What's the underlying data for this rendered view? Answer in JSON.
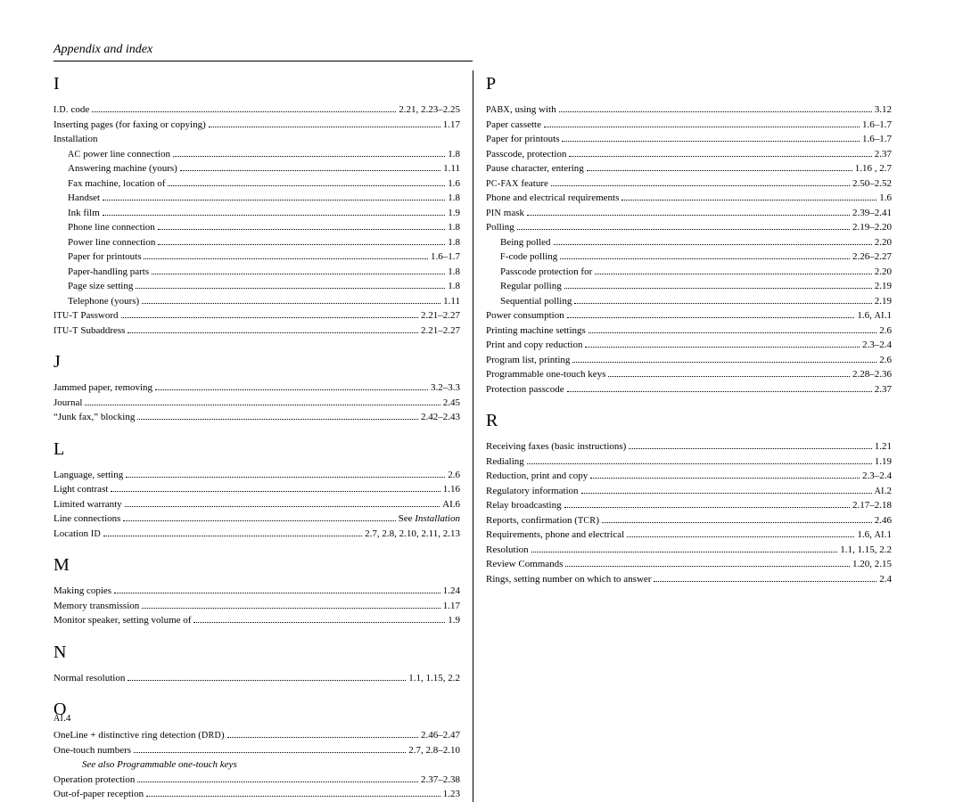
{
  "header": "Appendix and index",
  "pageNumber": "AI.4",
  "leftColumn": [
    {
      "type": "letter",
      "text": "I"
    },
    {
      "type": "entry",
      "level": 0,
      "label_html": "<span class='sc'>I.D.</span> code",
      "page": "2.21, 2.23–2.25"
    },
    {
      "type": "entry",
      "level": 0,
      "label": "Inserting pages (for faxing or copying)",
      "page": "1.17"
    },
    {
      "type": "entry",
      "level": 0,
      "label": "Installation",
      "page": ""
    },
    {
      "type": "entry",
      "level": 1,
      "label_html": "<span class='sc'>AC</span> power line connection",
      "page": "1.8"
    },
    {
      "type": "entry",
      "level": 1,
      "label": "Answering machine (yours)",
      "page": "1.11"
    },
    {
      "type": "entry",
      "level": 1,
      "label": "Fax machine, location of",
      "page": "1.6"
    },
    {
      "type": "entry",
      "level": 1,
      "label": "Handset",
      "page": "1.8"
    },
    {
      "type": "entry",
      "level": 1,
      "label": "Ink film",
      "page": "1.9"
    },
    {
      "type": "entry",
      "level": 1,
      "label": "Phone line connection",
      "page": "1.8"
    },
    {
      "type": "entry",
      "level": 1,
      "label": "Power line connection",
      "page": "1.8"
    },
    {
      "type": "entry",
      "level": 1,
      "label": "Paper for printouts",
      "page": "1.6–1.7"
    },
    {
      "type": "entry",
      "level": 1,
      "label": "Paper-handling parts",
      "page": "1.8"
    },
    {
      "type": "entry",
      "level": 1,
      "label": "Page size setting",
      "page": "1.8"
    },
    {
      "type": "entry",
      "level": 1,
      "label": "Telephone (yours)",
      "page": "1.11"
    },
    {
      "type": "entry",
      "level": 0,
      "label_html": "<span class='sc'>ITU-T</span> Password",
      "page": "2.21–2.27"
    },
    {
      "type": "entry",
      "level": 0,
      "label_html": "<span class='sc'>ITU-T</span> Subaddress",
      "page": "2.21–2.27"
    },
    {
      "type": "letter",
      "text": "J"
    },
    {
      "type": "entry",
      "level": 0,
      "label": "Jammed paper, removing",
      "page": "3.2–3.3"
    },
    {
      "type": "entry",
      "level": 0,
      "label": "Journal",
      "page": "2.45"
    },
    {
      "type": "entry",
      "level": 0,
      "label": "“Junk fax,” blocking",
      "page": "2.42–2.43"
    },
    {
      "type": "letter",
      "text": "L"
    },
    {
      "type": "entry",
      "level": 0,
      "label": "Language, setting",
      "page": "2.6"
    },
    {
      "type": "entry",
      "level": 0,
      "label": "Light contrast",
      "page": "1.16"
    },
    {
      "type": "entry",
      "level": 0,
      "label": "Limited warranty",
      "page": "AI.6"
    },
    {
      "type": "entry",
      "level": 0,
      "label": "Line connections",
      "page_html": "See <span class='see'>Installation</span>"
    },
    {
      "type": "entry",
      "level": 0,
      "label_html": "Location <span class='sc'>ID</span>",
      "page": "2.7, 2.8, 2.10, 2.11, 2.13"
    },
    {
      "type": "letter",
      "text": "M"
    },
    {
      "type": "entry",
      "level": 0,
      "label": "Making copies",
      "page": "1.24"
    },
    {
      "type": "entry",
      "level": 0,
      "label": "Memory transmission",
      "page": "1.17"
    },
    {
      "type": "entry",
      "level": 0,
      "label": "Monitor speaker, setting volume of",
      "page": "1.9"
    },
    {
      "type": "letter",
      "text": "N"
    },
    {
      "type": "entry",
      "level": 0,
      "label": "Normal resolution",
      "page": "1.1, 1.15, 2.2"
    },
    {
      "type": "letter",
      "text": "O"
    },
    {
      "type": "entry",
      "level": 0,
      "label_html": "OneLine + distinctive ring detection (<span class='sc'>DRD</span>)",
      "page": "2.46–2.47"
    },
    {
      "type": "entry",
      "level": 0,
      "label": "One-touch numbers",
      "page": "2.7, 2.8–2.10"
    },
    {
      "type": "note",
      "text_html": "See also <i>Programmable one-touch keys</i>"
    },
    {
      "type": "entry",
      "level": 0,
      "label": "Operation protection",
      "page": "2.37–2.38"
    },
    {
      "type": "entry",
      "level": 0,
      "label": "Out-of-paper reception",
      "page": "1.23"
    }
  ],
  "rightColumn": [
    {
      "type": "letter",
      "text": "P"
    },
    {
      "type": "entry",
      "level": 0,
      "label_html": "<span class='sc'>PABX</span>, using with",
      "page": "3.12"
    },
    {
      "type": "entry",
      "level": 0,
      "label": "Paper cassette",
      "page": "1.6–1.7"
    },
    {
      "type": "entry",
      "level": 0,
      "label": "Paper for printouts",
      "page": "1.6–1.7"
    },
    {
      "type": "entry",
      "level": 0,
      "label": "Passcode, protection",
      "page": "2.37"
    },
    {
      "type": "entry",
      "level": 0,
      "label": "Pause character, entering",
      "page": "1.16 , 2.7"
    },
    {
      "type": "entry",
      "level": 0,
      "label_html": "<span class='sc'>PC-FAX</span> feature",
      "page": "2.50–2.52"
    },
    {
      "type": "entry",
      "level": 0,
      "label": "Phone and electrical requirements",
      "page": "1.6"
    },
    {
      "type": "entry",
      "level": 0,
      "label_html": "<span class='sc'>PIN</span> mask",
      "page": "2.39–2.41"
    },
    {
      "type": "entry",
      "level": 0,
      "label": "Polling",
      "page": "2.19–2.20"
    },
    {
      "type": "entry",
      "level": 1,
      "label": "Being polled",
      "page": "2.20"
    },
    {
      "type": "entry",
      "level": 1,
      "label_html": "<span class='sc'>F</span>-code polling",
      "page": "2.26–2.27"
    },
    {
      "type": "entry",
      "level": 1,
      "label": "Passcode protection for",
      "page": "2.20"
    },
    {
      "type": "entry",
      "level": 1,
      "label": "Regular polling",
      "page": "2.19"
    },
    {
      "type": "entry",
      "level": 1,
      "label": "Sequential polling",
      "page": "2.19"
    },
    {
      "type": "entry",
      "level": 0,
      "label": "Power consumption",
      "page_html": "1.6, <span class='sc'>AI</span>.1"
    },
    {
      "type": "entry",
      "level": 0,
      "label": "Printing machine settings",
      "page": "2.6"
    },
    {
      "type": "entry",
      "level": 0,
      "label": "Print and copy reduction",
      "page": "2.3–2.4"
    },
    {
      "type": "entry",
      "level": 0,
      "label": "Program list, printing",
      "page": "2.6"
    },
    {
      "type": "entry",
      "level": 0,
      "label": "Programmable one-touch keys",
      "page": "2.28–2.36"
    },
    {
      "type": "entry",
      "level": 0,
      "label": "Protection passcode",
      "page": "2.37"
    },
    {
      "type": "letter",
      "text": "R"
    },
    {
      "type": "entry",
      "level": 0,
      "label": "Receiving faxes (basic instructions)",
      "page": "1.21"
    },
    {
      "type": "entry",
      "level": 0,
      "label": "Redialing",
      "page": "1.19"
    },
    {
      "type": "entry",
      "level": 0,
      "label": "Reduction, print and copy",
      "page": "2.3–2.4"
    },
    {
      "type": "entry",
      "level": 0,
      "label": "Regulatory information",
      "page_html": "<span class='sc'>AI</span>.2"
    },
    {
      "type": "entry",
      "level": 0,
      "label": "Relay broadcasting",
      "page": "2.17–2.18"
    },
    {
      "type": "entry",
      "level": 0,
      "label_html": "Reports, confirmation (<span class='sc'>TCR</span>)",
      "page": "2.46"
    },
    {
      "type": "entry",
      "level": 0,
      "label": "Requirements, phone and electrical",
      "page_html": "1.6, <span class='sc'>AI</span>.1"
    },
    {
      "type": "entry",
      "level": 0,
      "label": "Resolution",
      "page": "1.1, 1.15, 2.2"
    },
    {
      "type": "entry",
      "level": 0,
      "label": "Review Commands",
      "page": "1.20, 2.15"
    },
    {
      "type": "entry",
      "level": 0,
      "label": "Rings, setting number on which to answer",
      "page": "2.4"
    }
  ]
}
